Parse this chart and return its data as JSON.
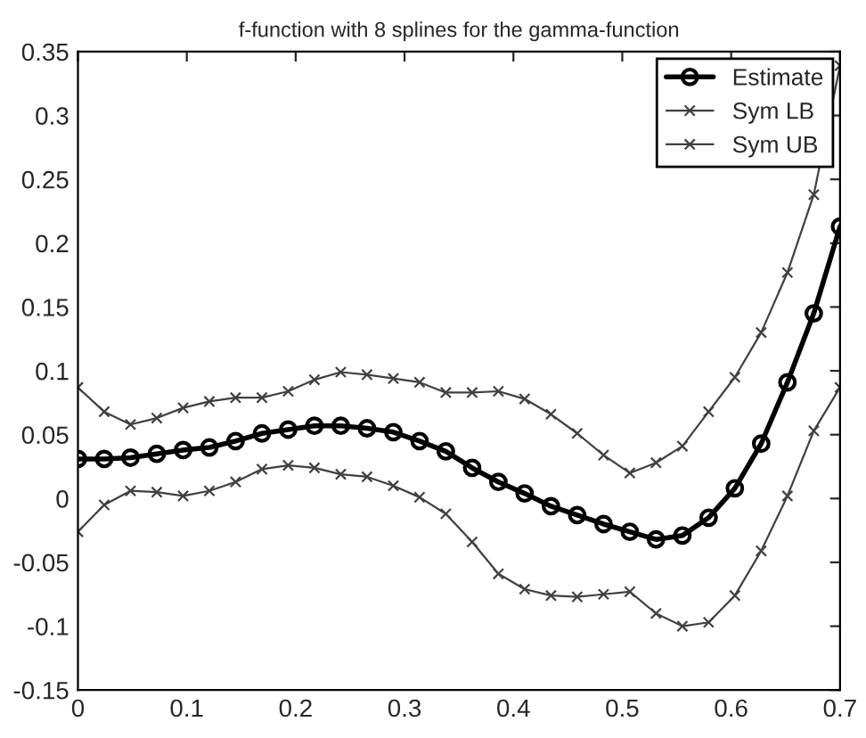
{
  "chart_data": {
    "type": "line",
    "title": "f-function with 8 splines for the gamma-function",
    "x": [
      0,
      0.0241,
      0.0483,
      0.0724,
      0.0966,
      0.1207,
      0.1448,
      0.169,
      0.1931,
      0.2172,
      0.2414,
      0.2655,
      0.2897,
      0.3138,
      0.3379,
      0.3621,
      0.3862,
      0.4103,
      0.4345,
      0.4586,
      0.4828,
      0.5069,
      0.531,
      0.5552,
      0.5793,
      0.6034,
      0.6276,
      0.6517,
      0.6759,
      0.7
    ],
    "series": [
      {
        "name": "Estimate",
        "color": "#000000",
        "marker": "circle",
        "values": [
          0.031,
          0.031,
          0.032,
          0.035,
          0.038,
          0.04,
          0.045,
          0.051,
          0.054,
          0.057,
          0.057,
          0.055,
          0.052,
          0.045,
          0.037,
          0.024,
          0.013,
          0.004,
          -0.006,
          -0.013,
          -0.02,
          -0.026,
          -0.032,
          -0.029,
          -0.015,
          0.008,
          0.043,
          0.091,
          0.145,
          0.213
        ]
      },
      {
        "name": "Sym LB",
        "color": "#404040",
        "marker": "cross",
        "values": [
          -0.026,
          -0.005,
          0.006,
          0.005,
          0.002,
          0.006,
          0.013,
          0.023,
          0.026,
          0.024,
          0.019,
          0.017,
          0.01,
          0.001,
          -0.012,
          -0.034,
          -0.059,
          -0.071,
          -0.076,
          -0.077,
          -0.075,
          -0.073,
          -0.09,
          -0.1,
          -0.097,
          -0.076,
          -0.041,
          0.002,
          0.053,
          0.087
        ]
      },
      {
        "name": "Sym UB",
        "color": "#404040",
        "marker": "cross",
        "values": [
          0.087,
          0.068,
          0.058,
          0.063,
          0.071,
          0.076,
          0.079,
          0.079,
          0.084,
          0.093,
          0.099,
          0.097,
          0.094,
          0.091,
          0.083,
          0.083,
          0.084,
          0.078,
          0.066,
          0.051,
          0.034,
          0.02,
          0.028,
          0.041,
          0.068,
          0.095,
          0.13,
          0.177,
          0.238,
          0.339
        ]
      }
    ],
    "xlim": [
      0,
      0.7
    ],
    "xticks": [
      0,
      0.1,
      0.2,
      0.3,
      0.4,
      0.5,
      0.6,
      0.7
    ],
    "ylim": [
      -0.15,
      0.35
    ],
    "yticks": [
      -0.15,
      -0.1,
      -0.05,
      0,
      0.05,
      0.1,
      0.15,
      0.2,
      0.25,
      0.3,
      0.35
    ],
    "grid": false,
    "legend": "top right",
    "line_style": "solid"
  }
}
